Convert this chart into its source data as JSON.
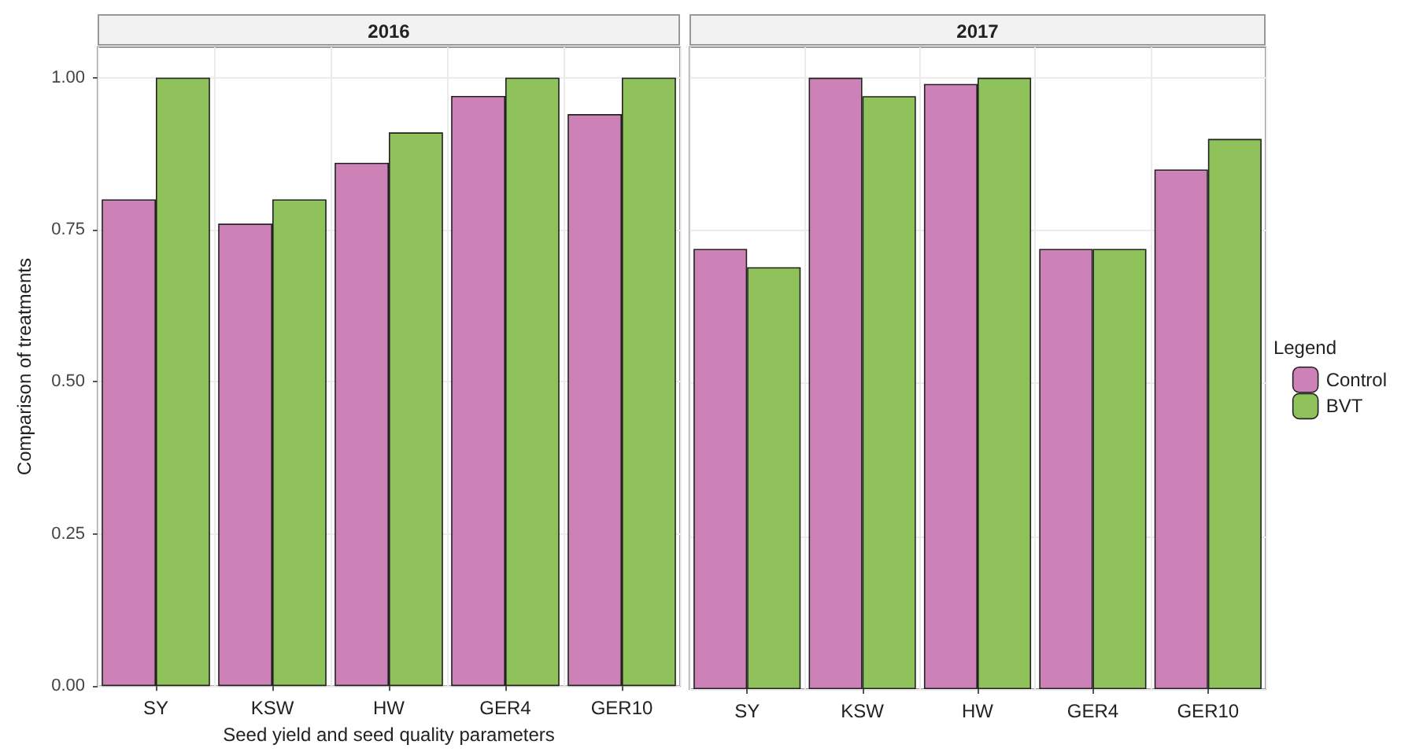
{
  "chart_data": [
    {
      "type": "bar",
      "title": "2016",
      "xlabel": "Seed yield and seed quality parameters",
      "ylabel": "Comparison of treatments",
      "categories": [
        "SY",
        "KSW",
        "HW",
        "GER4",
        "GER10"
      ],
      "series": [
        {
          "color": "#cc82b6",
          "values": [
            0.8,
            0.76,
            0.86,
            0.97,
            0.94
          ]
        },
        {
          "color": "#8fc25b",
          "values": [
            1.0,
            0.8,
            0.91,
            1.0,
            1.0
          ]
        }
      ],
      "ylim": [
        0,
        1.05
      ],
      "yticks": [
        {
          "value": 0,
          "label": "0.00"
        },
        {
          "value": 0.25,
          "label": "0.25"
        },
        {
          "value": 0.5,
          "label": "0.50"
        },
        {
          "value": 0.75,
          "label": "0.75"
        },
        {
          "value": 1,
          "label": "1.00"
        }
      ],
      "grid": true,
      "legend": false
    },
    {
      "type": "bar",
      "title": "2017",
      "legend_title": "Legend",
      "categories": [
        "SY",
        "KSW",
        "HW",
        "GER4",
        "GER10"
      ],
      "series": [
        {
          "name": "Control",
          "color": "#cc82b6",
          "values": [
            0.72,
            1.0,
            0.99,
            0.72,
            0.85
          ]
        },
        {
          "name": "BVT",
          "color": "#8fc25b",
          "values": [
            0.69,
            0.97,
            1.0,
            0.72,
            0.9
          ]
        }
      ],
      "ylim": [
        0,
        1.05
      ],
      "yticks": [
        0,
        0.25,
        0.5,
        0.75,
        1
      ],
      "grid": true,
      "tick_labels": "x",
      "legend": "right"
    }
  ]
}
